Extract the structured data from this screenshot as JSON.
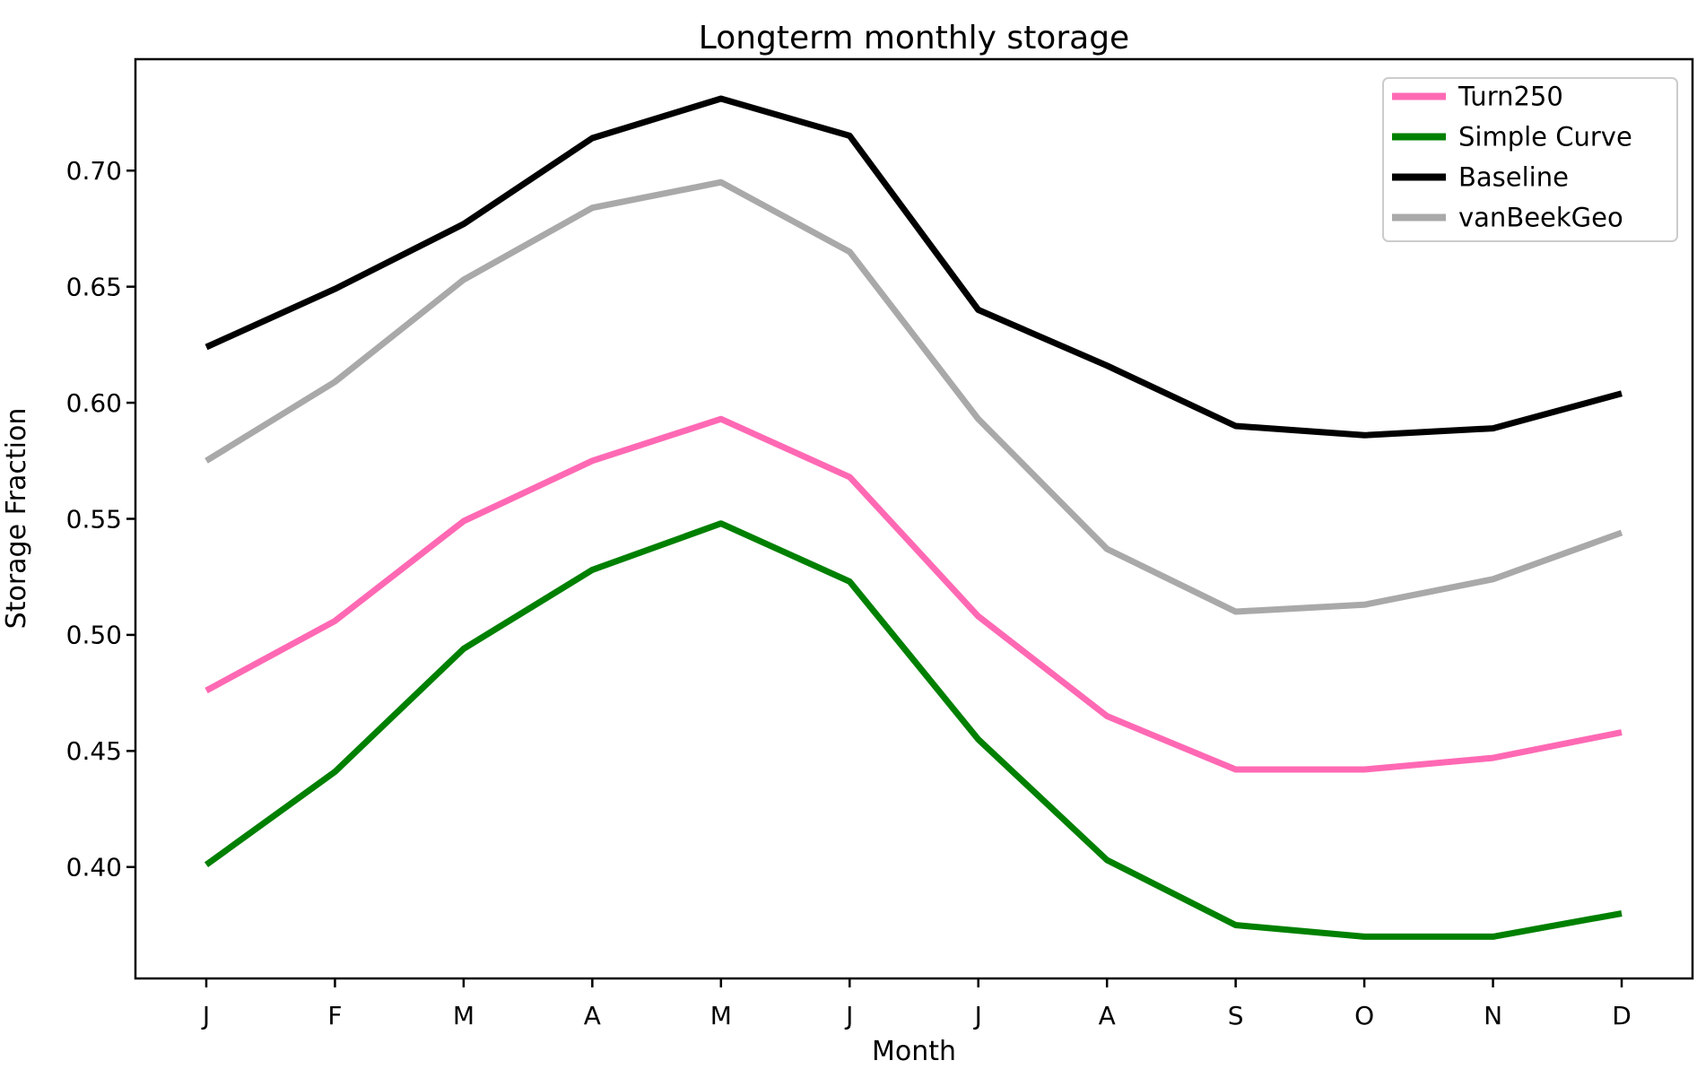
{
  "figure": {
    "title": "Longterm monthly storage",
    "xlabel": "Month",
    "ylabel": "Storage Fraction"
  },
  "chart_data": {
    "type": "line",
    "title": "Longterm monthly storage",
    "xlabel": "Month",
    "ylabel": "Storage Fraction",
    "categories": [
      "J",
      "F",
      "M",
      "A",
      "M",
      "J",
      "J",
      "A",
      "S",
      "O",
      "N",
      "D"
    ],
    "series": [
      {
        "name": "Turn250",
        "color": "#FF69B4",
        "values": [
          0.476,
          0.506,
          0.549,
          0.575,
          0.593,
          0.568,
          0.508,
          0.465,
          0.442,
          0.442,
          0.447,
          0.458
        ]
      },
      {
        "name": "Simple Curve",
        "color": "#008000",
        "values": [
          0.401,
          0.441,
          0.494,
          0.528,
          0.548,
          0.523,
          0.455,
          0.403,
          0.375,
          0.37,
          0.37,
          0.38
        ]
      },
      {
        "name": "Baseline",
        "color": "#000000",
        "values": [
          0.624,
          0.649,
          0.677,
          0.714,
          0.731,
          0.715,
          0.64,
          0.616,
          0.59,
          0.586,
          0.589,
          0.604
        ]
      },
      {
        "name": "vanBeekGeo",
        "color": "#A9A9A9",
        "values": [
          0.575,
          0.609,
          0.653,
          0.684,
          0.695,
          0.665,
          0.593,
          0.537,
          0.51,
          0.513,
          0.524,
          0.544
        ]
      }
    ],
    "yticks": [
      0.4,
      0.45,
      0.5,
      0.55,
      0.6,
      0.65,
      0.7
    ],
    "ytick_label_format": "2dp",
    "ylim": [
      0.352,
      0.748
    ],
    "xlim_padding_fraction": 0.0455,
    "legend_position": "upper right",
    "grid": false,
    "line_width": 7,
    "axis_color": "#000000",
    "background_color": "#ffffff",
    "legend_border_color": "#cccccc"
  }
}
